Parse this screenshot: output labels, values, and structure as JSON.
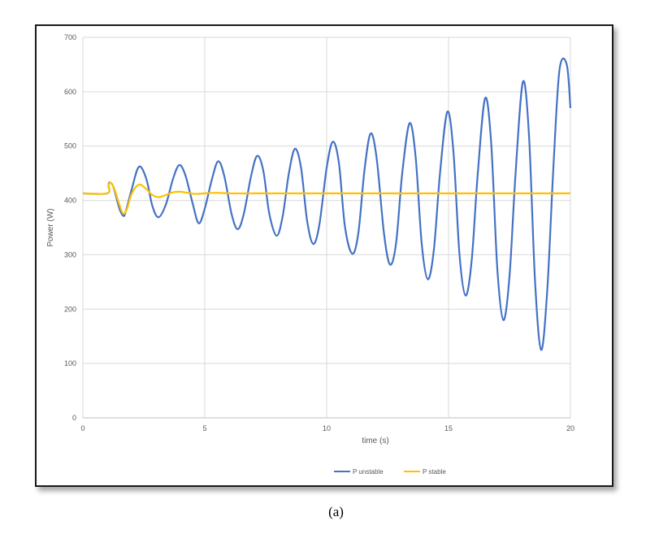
{
  "caption": "(a)",
  "colors": {
    "unstable": "#4472C4",
    "stable": "#FFC000",
    "grid": "#d9d9d9",
    "text": "#595959"
  },
  "chart_data": {
    "type": "line",
    "title": "",
    "xlabel": "time (s)",
    "ylabel": "Power (W)",
    "xlim": [
      0,
      20
    ],
    "ylim": [
      0,
      700
    ],
    "xticks": [
      0,
      5,
      10,
      15,
      20
    ],
    "yticks": [
      0,
      100,
      200,
      300,
      400,
      500,
      600,
      700
    ],
    "grid": true,
    "legend_position": "bottom",
    "series": [
      {
        "name": "P unstable",
        "color": "#4472C4",
        "x": [
          0,
          1.0,
          1.05,
          1.1,
          1.25,
          1.5,
          1.65,
          1.75,
          2.0,
          2.3,
          2.6,
          2.85,
          3.1,
          3.4,
          3.7,
          3.95,
          4.2,
          4.5,
          4.75,
          5.0,
          5.3,
          5.55,
          5.8,
          6.1,
          6.35,
          6.6,
          6.9,
          7.15,
          7.4,
          7.65,
          7.95,
          8.2,
          8.45,
          8.7,
          8.95,
          9.2,
          9.45,
          9.7,
          10.0,
          10.25,
          10.5,
          10.75,
          11.05,
          11.3,
          11.55,
          11.8,
          12.05,
          12.35,
          12.6,
          12.85,
          13.1,
          13.4,
          13.65,
          13.9,
          14.15,
          14.4,
          14.65,
          14.95,
          15.2,
          15.45,
          15.7,
          15.95,
          16.2,
          16.5,
          16.75,
          17.0,
          17.25,
          17.5,
          17.75,
          18.05,
          18.3,
          18.55,
          18.8,
          19.05,
          19.3,
          19.55,
          19.85,
          20.0
        ],
        "y": [
          413,
          413,
          428,
          433,
          425,
          385,
          372,
          378,
          420,
          462,
          440,
          390,
          369,
          392,
          440,
          465,
          447,
          395,
          358,
          385,
          440,
          472,
          445,
          375,
          347,
          375,
          445,
          482,
          455,
          375,
          335,
          372,
          450,
          495,
          460,
          362,
          320,
          355,
          460,
          508,
          470,
          352,
          302,
          340,
          455,
          523,
          478,
          340,
          282,
          322,
          450,
          542,
          480,
          320,
          255,
          310,
          450,
          563,
          490,
          300,
          225,
          290,
          450,
          588,
          505,
          275,
          180,
          260,
          450,
          618,
          520,
          250,
          125,
          235,
          460,
          640,
          650,
          570
        ]
      },
      {
        "name": "P stable",
        "color": "#FFC000",
        "x": [
          0,
          1.0,
          1.05,
          1.15,
          1.3,
          1.5,
          1.65,
          1.8,
          2.0,
          2.3,
          2.6,
          2.85,
          3.1,
          3.4,
          3.7,
          4.0,
          4.3,
          4.6,
          5.0,
          5.5,
          6.0,
          7.0,
          10.0,
          15.0,
          20.0
        ],
        "y": [
          413,
          413,
          428,
          432,
          420,
          392,
          376,
          383,
          412,
          429,
          421,
          410,
          406,
          410,
          415,
          416,
          414,
          412,
          413,
          414,
          413,
          413,
          413,
          413,
          413
        ]
      }
    ]
  }
}
